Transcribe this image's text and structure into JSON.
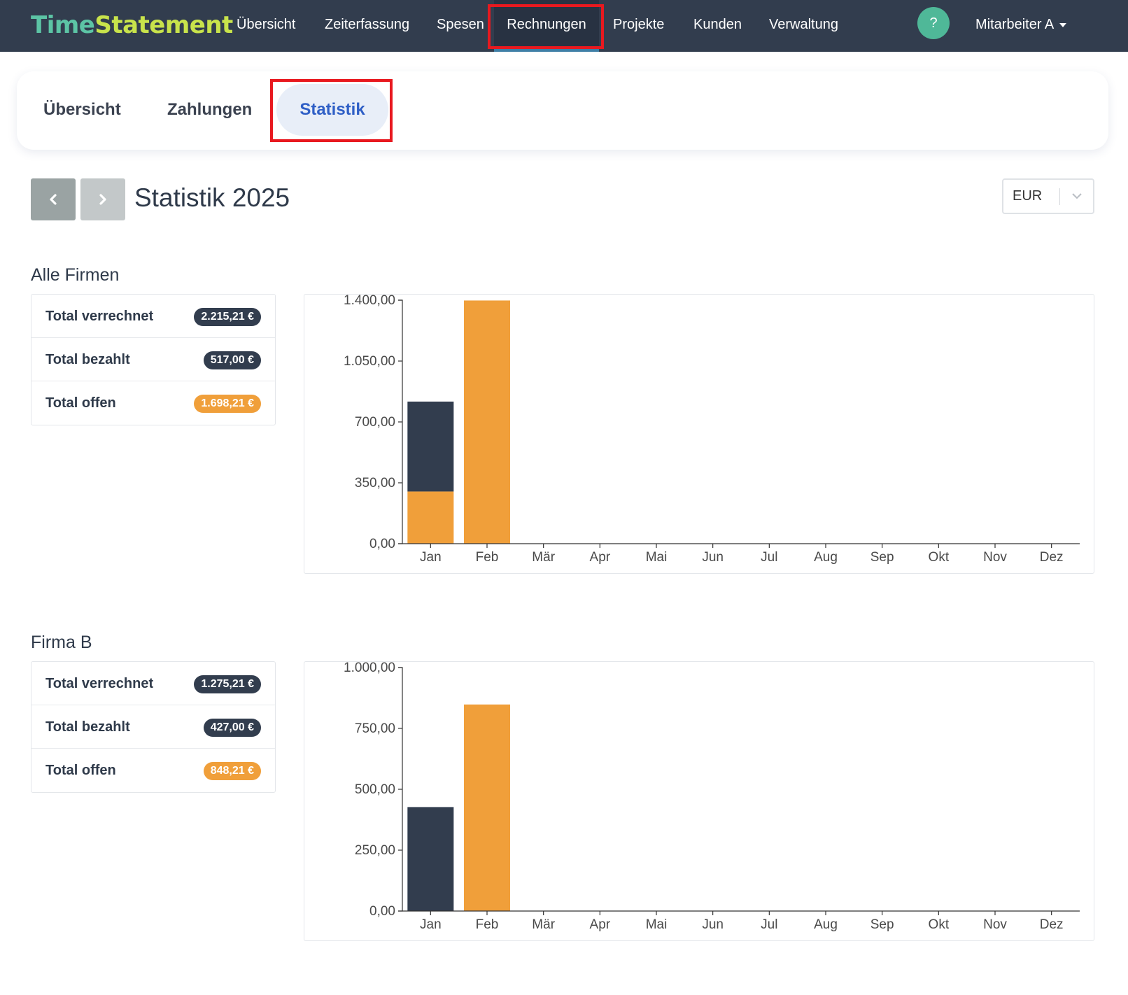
{
  "app": {
    "logo_part1": "Time",
    "logo_part2": "Statement"
  },
  "nav": {
    "items": [
      {
        "label": "Übersicht"
      },
      {
        "label": "Zeiterfassung"
      },
      {
        "label": "Spesen"
      },
      {
        "label": "Rechnungen",
        "active": true
      },
      {
        "label": "Projekte"
      },
      {
        "label": "Kunden"
      },
      {
        "label": "Verwaltung"
      }
    ],
    "help_label": "?",
    "user_label": "Mitarbeiter A"
  },
  "subtabs": {
    "items": [
      {
        "label": "Übersicht"
      },
      {
        "label": "Zahlungen"
      },
      {
        "label": "Statistik",
        "active": true
      }
    ]
  },
  "header": {
    "title": "Statistik 2025",
    "currency": "EUR"
  },
  "colors": {
    "dark": "#323d4e",
    "orange": "#f09f3a",
    "highlight": "#e8191f"
  },
  "sections": [
    {
      "title": "Alle Firmen",
      "summary": [
        {
          "label": "Total verrechnet",
          "value": "2.215,21 €",
          "style": "dark"
        },
        {
          "label": "Total bezahlt",
          "value": "517,00 €",
          "style": "dark"
        },
        {
          "label": "Total offen",
          "value": "1.698,21 €",
          "style": "orange"
        }
      ]
    },
    {
      "title": "Firma B",
      "summary": [
        {
          "label": "Total verrechnet",
          "value": "1.275,21 €",
          "style": "dark"
        },
        {
          "label": "Total bezahlt",
          "value": "427,00 €",
          "style": "dark"
        },
        {
          "label": "Total offen",
          "value": "848,21 €",
          "style": "orange"
        }
      ]
    }
  ],
  "chart_data": [
    {
      "type": "bar",
      "stacked": true,
      "categories": [
        "Jan",
        "Feb",
        "Mär",
        "Apr",
        "Mai",
        "Jun",
        "Jul",
        "Aug",
        "Sep",
        "Okt",
        "Nov",
        "Dez"
      ],
      "ylim": [
        0,
        1400
      ],
      "yticks": [
        0,
        350,
        700,
        1050,
        1400
      ],
      "ytick_labels": [
        "0,00",
        "350,00",
        "700,00",
        "1.050,00",
        "1.400,00"
      ],
      "series": [
        {
          "values": [
            300,
            1398.21,
            0,
            0,
            0,
            0,
            0,
            0,
            0,
            0,
            0,
            0
          ],
          "color": "#f09f3a"
        },
        {
          "values": [
            517,
            0,
            0,
            0,
            0,
            0,
            0,
            0,
            0,
            0,
            0,
            0
          ],
          "color": "#323d4e"
        }
      ]
    },
    {
      "type": "bar",
      "stacked": true,
      "categories": [
        "Jan",
        "Feb",
        "Mär",
        "Apr",
        "Mai",
        "Jun",
        "Jul",
        "Aug",
        "Sep",
        "Okt",
        "Nov",
        "Dez"
      ],
      "ylim": [
        0,
        1000
      ],
      "yticks": [
        0,
        250,
        500,
        750,
        1000
      ],
      "ytick_labels": [
        "0,00",
        "250,00",
        "500,00",
        "750,00",
        "1.000,00"
      ],
      "series": [
        {
          "values": [
            0,
            848.21,
            0,
            0,
            0,
            0,
            0,
            0,
            0,
            0,
            0,
            0
          ],
          "color": "#f09f3a"
        },
        {
          "values": [
            427,
            0,
            0,
            0,
            0,
            0,
            0,
            0,
            0,
            0,
            0,
            0
          ],
          "color": "#323d4e"
        }
      ]
    }
  ]
}
